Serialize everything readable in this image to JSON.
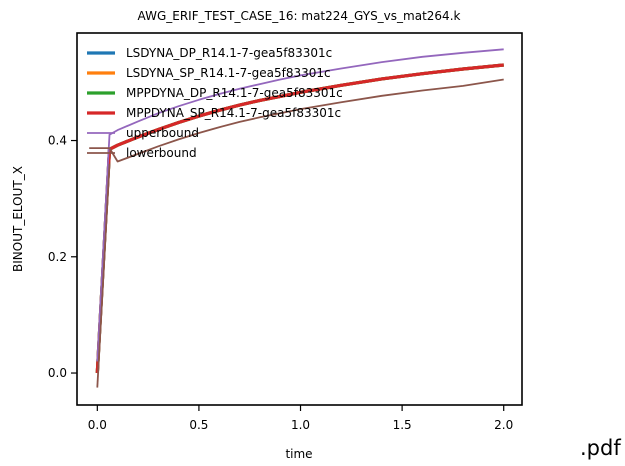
{
  "chart_data": {
    "type": "line",
    "title": "AWG_ERIF_TEST_CASE_16: mat224_GYS_vs_mat264.k",
    "xlabel": "time",
    "ylabel": "BINOUT_ELOUT_X",
    "xlim": [
      -0.1,
      2.09
    ],
    "ylim": [
      -0.055,
      0.585
    ],
    "xticks": [
      0.0,
      0.5,
      1.0,
      1.5,
      2.0
    ],
    "xtick_labels": [
      "0.0",
      "0.5",
      "1.0",
      "1.5",
      "2.0"
    ],
    "yticks": [
      0.0,
      0.2,
      0.4
    ],
    "ytick_labels": [
      "0.0",
      "0.2",
      "0.4"
    ],
    "grid": false,
    "legend_position": "top-left",
    "series": [
      {
        "name": "LSDYNA_DP_R14.1-7-gea5f83301c",
        "color": "#1f77b4",
        "x": [
          0.0,
          0.06,
          0.1,
          0.2,
          0.3,
          0.4,
          0.5,
          0.6,
          0.7,
          0.8,
          0.9,
          1.0,
          1.2,
          1.4,
          1.6,
          1.8,
          2.0
        ],
        "y": [
          0.0,
          0.385,
          0.392,
          0.406,
          0.419,
          0.431,
          0.442,
          0.452,
          0.461,
          0.469,
          0.476,
          0.483,
          0.495,
          0.506,
          0.515,
          0.523,
          0.53
        ]
      },
      {
        "name": "LSDYNA_SP_R14.1-7-gea5f83301c",
        "color": "#ff7f0e",
        "x": [
          0.0,
          0.06,
          0.1,
          0.2,
          0.3,
          0.4,
          0.5,
          0.6,
          0.7,
          0.8,
          0.9,
          1.0,
          1.2,
          1.4,
          1.6,
          1.8,
          2.0
        ],
        "y": [
          0.0,
          0.385,
          0.392,
          0.406,
          0.419,
          0.431,
          0.442,
          0.452,
          0.461,
          0.469,
          0.476,
          0.483,
          0.495,
          0.506,
          0.515,
          0.523,
          0.53
        ]
      },
      {
        "name": "MPPDYNA_DP_R14.1-7-gea5f83301c",
        "color": "#2ca02c",
        "x": [
          0.0,
          0.06,
          0.1,
          0.2,
          0.3,
          0.4,
          0.5,
          0.6,
          0.7,
          0.8,
          0.9,
          1.0,
          1.2,
          1.4,
          1.6,
          1.8,
          2.0
        ],
        "y": [
          0.0,
          0.385,
          0.392,
          0.406,
          0.419,
          0.431,
          0.442,
          0.452,
          0.461,
          0.469,
          0.476,
          0.483,
          0.495,
          0.506,
          0.515,
          0.523,
          0.53
        ]
      },
      {
        "name": "MPPDYNA_SP_R14.1-7-gea5f83301c",
        "color": "#d62728",
        "x": [
          0.0,
          0.06,
          0.1,
          0.2,
          0.3,
          0.4,
          0.5,
          0.6,
          0.7,
          0.8,
          0.9,
          1.0,
          1.2,
          1.4,
          1.6,
          1.8,
          2.0
        ],
        "y": [
          0.0,
          0.385,
          0.392,
          0.406,
          0.419,
          0.431,
          0.442,
          0.452,
          0.461,
          0.469,
          0.476,
          0.483,
          0.495,
          0.506,
          0.515,
          0.523,
          0.53
        ]
      },
      {
        "name": "upperbound",
        "color": "#9467bd",
        "x": [
          0.0,
          0.06,
          0.1,
          0.2,
          0.3,
          0.4,
          0.5,
          0.6,
          0.7,
          0.8,
          0.9,
          1.0,
          1.2,
          1.4,
          1.6,
          1.8,
          2.0
        ],
        "y": [
          0.02,
          0.41,
          0.418,
          0.433,
          0.447,
          0.459,
          0.47,
          0.48,
          0.489,
          0.497,
          0.505,
          0.512,
          0.524,
          0.535,
          0.544,
          0.551,
          0.557
        ]
      },
      {
        "name": "lowerbound",
        "color": "#8c564b",
        "x": [
          -0.04,
          0.0,
          0.06,
          0.1,
          0.2,
          0.3,
          0.4,
          0.5,
          0.6,
          0.7,
          0.8,
          0.9,
          1.0,
          1.2,
          1.4,
          1.6,
          1.8,
          2.0
        ],
        "y": [
          0.387,
          0.387,
          0.387,
          0.364,
          0.377,
          0.39,
          0.402,
          0.413,
          0.423,
          0.432,
          0.44,
          0.447,
          0.454,
          0.466,
          0.477,
          0.486,
          0.494,
          0.505
        ]
      },
      {
        "name": "",
        "color": "#8c564b",
        "x": [
          0.0,
          0.06
        ],
        "y": [
          -0.025,
          0.36
        ]
      }
    ]
  },
  "watermark": ".pdf"
}
